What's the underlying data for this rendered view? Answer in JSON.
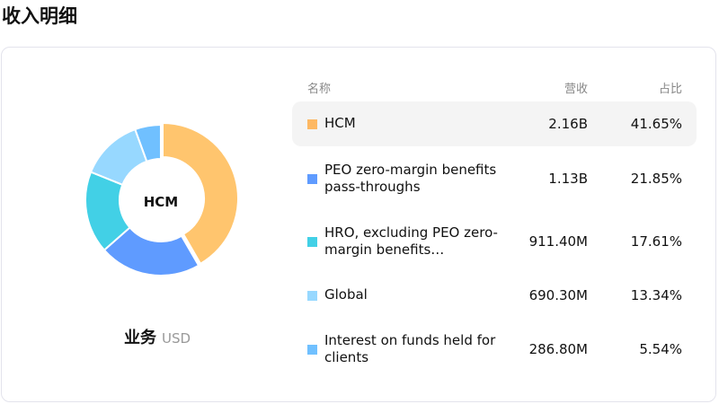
{
  "title": "收入明细",
  "chart_data": {
    "type": "pie",
    "donut": true,
    "center_label": "HCM",
    "caption": "业务",
    "unit": "USD",
    "headers": [
      "名称",
      "营收",
      "占比"
    ],
    "items": [
      {
        "name": "HCM",
        "value": "2.16B",
        "percent": "41.65%",
        "pct": 41.65,
        "color": "#FFC56E",
        "swatch": "#FDB863"
      },
      {
        "name": "PEO zero-margin benefits pass-throughs",
        "value": "1.13B",
        "percent": "21.85%",
        "pct": 21.85,
        "color": "#5F9BFF",
        "swatch": "#5F9BFF"
      },
      {
        "name": "HRO, excluding PEO zero-margin benefits…",
        "value": "911.40M",
        "percent": "17.61%",
        "pct": 17.61,
        "color": "#42D0E6",
        "swatch": "#42D0E6"
      },
      {
        "name": "Global",
        "value": "690.30M",
        "percent": "13.34%",
        "pct": 13.34,
        "color": "#97D8FF",
        "swatch": "#97D8FF"
      },
      {
        "name": "Interest on funds held for clients",
        "value": "286.80M",
        "percent": "5.54%",
        "pct": 5.54,
        "color": "#70C0FF",
        "swatch": "#70C0FF"
      }
    ]
  }
}
